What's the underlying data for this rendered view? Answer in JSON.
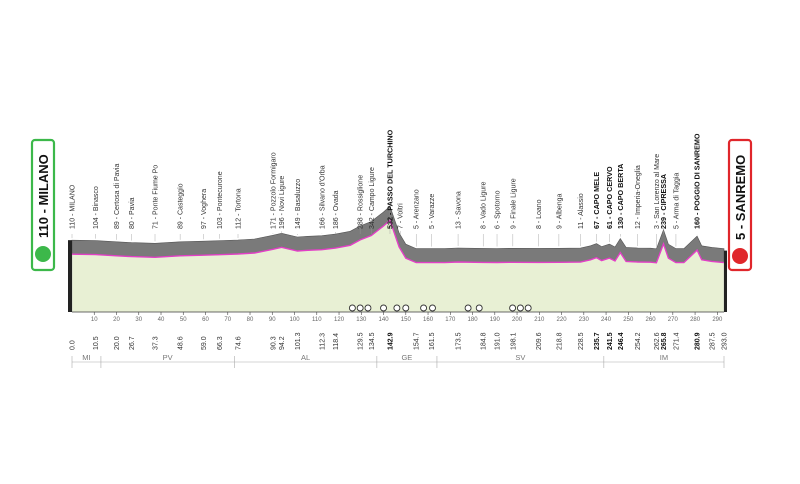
{
  "chart_data": {
    "type": "area",
    "start": {
      "label": "110 - MILANO",
      "color": "#3cb84a"
    },
    "finish": {
      "label": "5 - SANREMO",
      "color": "#e0262b"
    },
    "colors": {
      "profile_fill": "#e8f0d4",
      "profile_top": "#7a7a7a",
      "pink_line": "#e23fc6"
    },
    "xlim": [
      0,
      293
    ],
    "x_ticks": [
      10,
      20,
      30,
      40,
      50,
      60,
      70,
      80,
      90,
      100,
      110,
      120,
      130,
      140,
      150,
      160,
      170,
      180,
      190,
      200,
      210,
      220,
      230,
      240,
      250,
      260,
      270,
      280,
      290
    ],
    "elevation_profile": [
      [
        0,
        110
      ],
      [
        10.5,
        104
      ],
      [
        20,
        89
      ],
      [
        26.7,
        80
      ],
      [
        37.3,
        71
      ],
      [
        48.6,
        89
      ],
      [
        59,
        97
      ],
      [
        66.3,
        103
      ],
      [
        74.6,
        112
      ],
      [
        82,
        125
      ],
      [
        90.3,
        171
      ],
      [
        94.2,
        196
      ],
      [
        101.3,
        149
      ],
      [
        106,
        158
      ],
      [
        112.3,
        166
      ],
      [
        118.4,
        186
      ],
      [
        125,
        220
      ],
      [
        129.5,
        288
      ],
      [
        134.5,
        342
      ],
      [
        140,
        460
      ],
      [
        142.9,
        532
      ],
      [
        147,
        200
      ],
      [
        150,
        60
      ],
      [
        154.7,
        5
      ],
      [
        161.5,
        5
      ],
      [
        167.5,
        5
      ],
      [
        173.5,
        13
      ],
      [
        184.8,
        8
      ],
      [
        191,
        6
      ],
      [
        198.1,
        9
      ],
      [
        209.6,
        8
      ],
      [
        218.8,
        9
      ],
      [
        228.5,
        11
      ],
      [
        233,
        40
      ],
      [
        235.7,
        67
      ],
      [
        238,
        30
      ],
      [
        241.5,
        61
      ],
      [
        244,
        25
      ],
      [
        246.4,
        130
      ],
      [
        249,
        20
      ],
      [
        254.2,
        12
      ],
      [
        260,
        10
      ],
      [
        262.6,
        3
      ],
      [
        265.8,
        239
      ],
      [
        268,
        60
      ],
      [
        271.4,
        5
      ],
      [
        275,
        5
      ],
      [
        280.9,
        160
      ],
      [
        283,
        40
      ],
      [
        287.5,
        20
      ],
      [
        293,
        5
      ]
    ],
    "locations": [
      {
        "km": "0.0",
        "x": 0,
        "label": "110 - MILANO"
      },
      {
        "km": "10.5",
        "x": 10.5,
        "label": "104 - Binasco"
      },
      {
        "km": "20.0",
        "x": 20.0,
        "label": "89 - Certosa di Pavia"
      },
      {
        "km": "26.7",
        "x": 26.7,
        "label": "80 - Pavia"
      },
      {
        "km": "37.3",
        "x": 37.3,
        "label": "71 - Ponte Fiume Po"
      },
      {
        "km": "48.6",
        "x": 48.6,
        "label": "89 - Casteggio"
      },
      {
        "km": "59.0",
        "x": 59.0,
        "label": "97 - Voghera"
      },
      {
        "km": "66.3",
        "x": 66.3,
        "label": "103 - Pontecurone"
      },
      {
        "km": "74.6",
        "x": 74.6,
        "label": "112 - Tortona"
      },
      {
        "km": "90.3",
        "x": 90.3,
        "label": "171 - Pozzolo Formigaro"
      },
      {
        "km": "94.2",
        "x": 94.2,
        "label": "196 - Novi Ligure"
      },
      {
        "km": "101.3",
        "x": 101.3,
        "label": "149 - Basaluzzo"
      },
      {
        "km": "112.3",
        "x": 112.3,
        "label": "166 - Silvano d'Orba"
      },
      {
        "km": "118.4",
        "x": 118.4,
        "label": "186 - Ovada"
      },
      {
        "km": "129.5",
        "x": 129.5,
        "label": "288 - Rossiglione"
      },
      {
        "km": "134.5",
        "x": 134.5,
        "label": "342 - Campo Ligure"
      },
      {
        "km": "142.9",
        "x": 142.9,
        "label": "532 - PASSO DEL TURCHINO",
        "bold": true
      },
      {
        "km": "",
        "x": 147.5,
        "label": "7 - Voltri"
      },
      {
        "km": "154.7",
        "x": 154.7,
        "label": "5 - Arenzano"
      },
      {
        "km": "161.5",
        "x": 161.5,
        "label": "5 - Varazze"
      },
      {
        "km": "173.5",
        "x": 173.5,
        "label": "13 - Savona"
      },
      {
        "km": "184.8",
        "x": 184.8,
        "label": "8 - Vado Ligure"
      },
      {
        "km": "191.0",
        "x": 191.0,
        "label": "6 - Spotorno"
      },
      {
        "km": "198.1",
        "x": 198.1,
        "label": "9 - Finale Ligure"
      },
      {
        "km": "209.6",
        "x": 209.6,
        "label": "8 - Loano"
      },
      {
        "km": "218.8",
        "x": 218.8,
        "label": "9 - Albenga"
      },
      {
        "km": "228.5",
        "x": 228.5,
        "label": "11 - Alassio"
      },
      {
        "km": "235.7",
        "x": 235.7,
        "label": "67 - CAPO MELE",
        "bold": true
      },
      {
        "km": "241.5",
        "x": 241.5,
        "label": "61 - CAPO CERVO",
        "bold": true
      },
      {
        "km": "246.4",
        "x": 246.4,
        "label": "130 - CAPO BERTA",
        "bold": true
      },
      {
        "km": "254.2",
        "x": 254.2,
        "label": "12 - Imperia-Oneglia"
      },
      {
        "km": "262.6",
        "x": 262.6,
        "label": "3 - San Lorenzo al Mare"
      },
      {
        "km": "265.8",
        "x": 265.8,
        "label": "239 - CIPRESSA",
        "bold": true
      },
      {
        "km": "271.4",
        "x": 271.4,
        "label": "5 - Arma di Taggia"
      },
      {
        "km": "280.9",
        "x": 280.9,
        "label": "160 - POGGIO DI SANREMO",
        "bold": true
      },
      {
        "km": "287.5",
        "x": 287.5,
        "label": ""
      },
      {
        "km": "293.0",
        "x": 293.0,
        "label": ""
      }
    ],
    "provinces": [
      {
        "code": "MI",
        "from": 0,
        "to": 13
      },
      {
        "code": "PV",
        "from": 13,
        "to": 73
      },
      {
        "code": "AL",
        "from": 73,
        "to": 137
      },
      {
        "code": "GE",
        "from": 137,
        "to": 164
      },
      {
        "code": "SV",
        "from": 164,
        "to": 239
      },
      {
        "code": "IM",
        "from": 239,
        "to": 293
      }
    ],
    "tunnels": [
      126,
      129.5,
      133,
      140,
      146,
      150,
      158,
      162,
      178,
      183,
      198,
      201.5,
      205
    ]
  }
}
